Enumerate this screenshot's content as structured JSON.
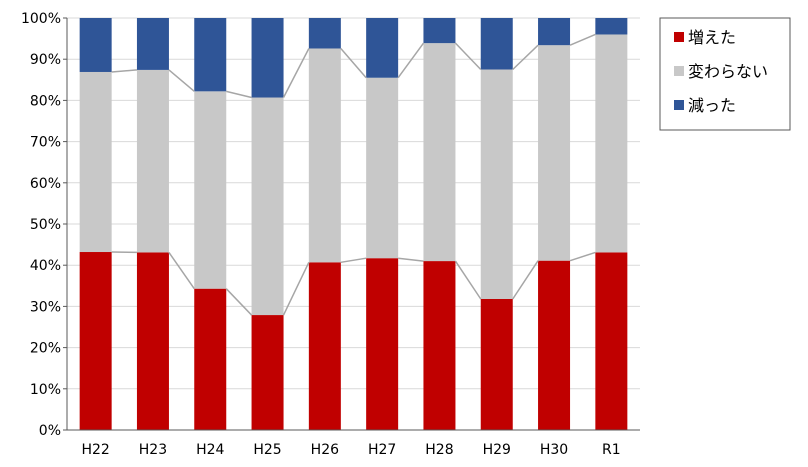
{
  "chart_data": {
    "type": "bar",
    "stacked": true,
    "normalized_percent": true,
    "categories": [
      "H22",
      "H23",
      "H24",
      "H25",
      "H26",
      "H27",
      "H28",
      "H29",
      "H30",
      "R1"
    ],
    "series": [
      {
        "name": "増えた",
        "color": "#C00000",
        "values": [
          43.2,
          43.1,
          34.3,
          27.9,
          40.7,
          41.7,
          41.0,
          31.8,
          41.1,
          43.1
        ]
      },
      {
        "name": "変わらない",
        "color": "#C8C8C8",
        "values": [
          43.7,
          44.3,
          47.9,
          52.8,
          51.9,
          43.8,
          52.9,
          55.7,
          52.3,
          52.9
        ]
      },
      {
        "name": "減った",
        "color": "#2F5597",
        "values": [
          13.1,
          12.6,
          17.8,
          19.3,
          7.4,
          14.5,
          6.1,
          12.5,
          6.6,
          4.0
        ]
      }
    ],
    "ylim": [
      0,
      100
    ],
    "y_ticks": [
      "0%",
      "10%",
      "20%",
      "30%",
      "40%",
      "50%",
      "60%",
      "70%",
      "80%",
      "90%",
      "100%"
    ],
    "grid": true,
    "legend": "right",
    "series_lines": true
  }
}
